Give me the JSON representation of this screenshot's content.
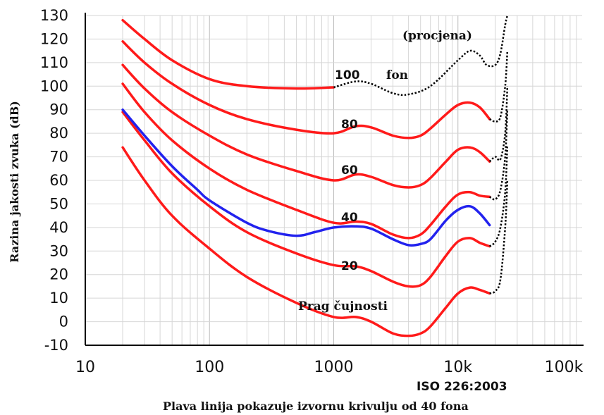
{
  "chart_data": {
    "type": "line",
    "ylabel": "Razina jakosti zvuka (dB)",
    "xscale": "log",
    "xlim": [
      10,
      100000
    ],
    "ylim": [
      -10,
      130
    ],
    "y_ticks": [
      130,
      120,
      110,
      100,
      90,
      80,
      70,
      60,
      50,
      40,
      30,
      20,
      10,
      0,
      -10
    ],
    "x_ticks": [
      "10",
      "100",
      "1000",
      "10k",
      "100k"
    ],
    "x_tick_values": [
      10,
      100,
      1000,
      10000,
      100000
    ],
    "grid": true,
    "notes": [
      "ISO 226:2003",
      "Plava linija pokazuje izvornu krivulju od 40 fona"
    ],
    "annotations": [
      "(procjena)",
      "100",
      "fon",
      "80",
      "60",
      "40",
      "20",
      "Prag čujnosti"
    ],
    "colors": {
      "curves": "#ff1a1a",
      "original": "#2222ee",
      "estimate": "#000000"
    },
    "series": [
      {
        "color": "#ff1a1a",
        "x": [
          20,
          30,
          50,
          100,
          200,
          500,
          1000
        ],
        "y": [
          128,
          120,
          111,
          103,
          100,
          99,
          99.5
        ]
      },
      {
        "color": "#000000",
        "style": "dotted",
        "x": [
          1000,
          1500,
          2000,
          3000,
          4000,
          6000,
          10000,
          12500,
          15000,
          17000,
          20000,
          22000,
          24000,
          25000
        ],
        "y": [
          99.5,
          102,
          101,
          97,
          96.5,
          100,
          111,
          115,
          113,
          109,
          109,
          114,
          126,
          130
        ]
      },
      {
        "color": "#ff1a1a",
        "x": [
          20,
          30,
          50,
          100,
          200,
          500,
          1000,
          1500,
          2000,
          3000,
          4000,
          5000,
          6000,
          8000,
          10000,
          12500,
          15000,
          18000
        ],
        "y": [
          119,
          110,
          101,
          92,
          86,
          81.5,
          80,
          83,
          82.5,
          79,
          78,
          79,
          82,
          88,
          92,
          93,
          91,
          86
        ]
      },
      {
        "color": "#000000",
        "style": "dotted",
        "x": [
          18000,
          20000,
          22000,
          24000,
          25000
        ],
        "y": [
          86,
          85,
          87,
          100,
          115
        ]
      },
      {
        "color": "#ff1a1a",
        "x": [
          20,
          30,
          50,
          100,
          200,
          500,
          1000,
          1500,
          2000,
          3000,
          4000,
          5000,
          6000,
          8000,
          10000,
          12500,
          15000,
          18000
        ],
        "y": [
          109,
          99,
          89,
          79,
          71,
          64,
          60,
          62.5,
          61.5,
          58,
          57,
          58,
          61,
          68,
          73,
          74,
          72,
          68
        ]
      },
      {
        "color": "#000000",
        "style": "dotted",
        "x": [
          18000,
          20000,
          22000,
          24000,
          25000
        ],
        "y": [
          68,
          70,
          69,
          80,
          100
        ]
      },
      {
        "color": "#ff1a1a",
        "x": [
          20,
          30,
          50,
          100,
          200,
          500,
          1000,
          1500,
          2000,
          3000,
          4000,
          5000,
          6000,
          8000,
          10000,
          12500,
          15000,
          18000
        ],
        "y": [
          101,
          89,
          77,
          65,
          56,
          47.5,
          42,
          42.5,
          41.5,
          37,
          35.5,
          37,
          41,
          49,
          54,
          55,
          53.5,
          53
        ]
      },
      {
        "color": "#000000",
        "style": "dotted",
        "x": [
          18000,
          20000,
          22000,
          24000,
          25000
        ],
        "y": [
          53,
          52,
          56,
          70,
          90
        ]
      },
      {
        "color": "#ff1a1a",
        "x": [
          20,
          30,
          50,
          100,
          200,
          500,
          1000,
          1500,
          2000,
          3000,
          4000,
          5000,
          6000,
          8000,
          10000,
          12500,
          15000,
          18000
        ],
        "y": [
          89,
          77,
          63,
          49,
          38,
          29,
          24,
          23.5,
          21.5,
          17,
          15,
          15.5,
          19,
          28,
          34,
          35.5,
          33.5,
          32
        ]
      },
      {
        "color": "#000000",
        "style": "dotted",
        "x": [
          18000,
          20000,
          22000,
          24000,
          25000
        ],
        "y": [
          32,
          34,
          40,
          55,
          75
        ]
      },
      {
        "color": "#ff1a1a",
        "x": [
          20,
          30,
          50,
          100,
          200,
          500,
          1000,
          1500,
          2000,
          3000,
          4000,
          5000,
          6000,
          8000,
          10000,
          12500,
          15000,
          18000
        ],
        "y": [
          74,
          60,
          45,
          31,
          19,
          8,
          2,
          2,
          0,
          -5,
          -6,
          -5,
          -2,
          6,
          12,
          14.5,
          13.5,
          12
        ]
      },
      {
        "color": "#000000",
        "style": "dotted",
        "x": [
          18000,
          20000,
          22000,
          24000,
          25000
        ],
        "y": [
          12,
          13,
          18,
          40,
          60
        ]
      },
      {
        "color": "#2222ee",
        "x": [
          20,
          30,
          50,
          80,
          100,
          200,
          300,
          500,
          700,
          1000,
          1500,
          2000,
          3000,
          4000,
          5000,
          6000,
          8000,
          10000,
          12500,
          15000,
          18000
        ],
        "y": [
          90,
          79,
          66,
          56,
          51.5,
          42,
          38.5,
          36.5,
          38,
          40,
          40.5,
          39.5,
          35,
          32.5,
          33,
          35,
          43,
          47.5,
          49,
          46,
          41
        ]
      }
    ]
  }
}
